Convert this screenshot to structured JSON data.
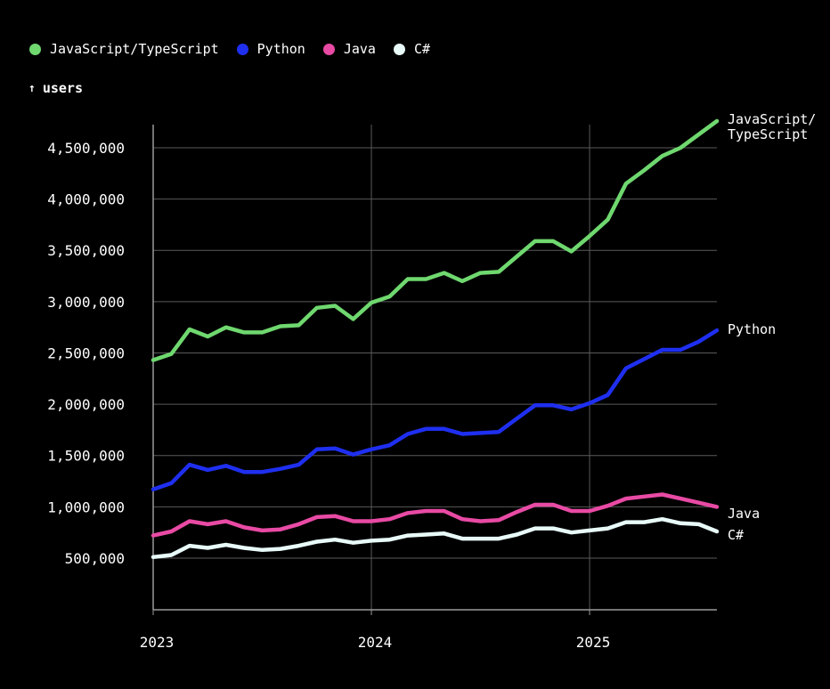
{
  "chart_data": {
    "type": "line",
    "title": "",
    "ylabel": "users",
    "xlabel": "",
    "ylim": [
      0,
      4750000
    ],
    "xlim": [
      0,
      31
    ],
    "y_ticks": [
      500000,
      1000000,
      1500000,
      2000000,
      2500000,
      3000000,
      3500000,
      4000000,
      4500000
    ],
    "y_tick_labels": [
      "500,000",
      "1,000,000",
      "1,500,000",
      "2,000,000",
      "2,500,000",
      "3,000,000",
      "3,500,000",
      "4,000,000",
      "4,500,000"
    ],
    "x_ticks": [
      0,
      12,
      24
    ],
    "x_tick_labels": [
      "2023",
      "2024",
      "2025"
    ],
    "legend_position": "top-left",
    "grid": true,
    "series": [
      {
        "name": "JavaScript/TypeScript",
        "end_label": "JavaScript/\nTypeScript",
        "color": "#6fd86f",
        "values": [
          2430000,
          2490000,
          2730000,
          2660000,
          2750000,
          2700000,
          2700000,
          2760000,
          2770000,
          2940000,
          2960000,
          2830000,
          2990000,
          3050000,
          3220000,
          3220000,
          3280000,
          3200000,
          3280000,
          3290000,
          3440000,
          3590000,
          3590000,
          3490000,
          3640000,
          3800000,
          4150000,
          4280000,
          4420000,
          4500000,
          4630000,
          4760000
        ]
      },
      {
        "name": "Python",
        "end_label": "Python",
        "color": "#1f2ff0",
        "values": [
          1170000,
          1230000,
          1410000,
          1360000,
          1400000,
          1340000,
          1340000,
          1370000,
          1410000,
          1560000,
          1570000,
          1510000,
          1560000,
          1600000,
          1710000,
          1760000,
          1760000,
          1710000,
          1720000,
          1730000,
          1860000,
          1990000,
          1990000,
          1950000,
          2010000,
          2090000,
          2350000,
          2440000,
          2530000,
          2530000,
          2610000,
          2720000
        ]
      },
      {
        "name": "Java",
        "end_label": "Java",
        "color": "#e84aa4",
        "values": [
          720000,
          760000,
          860000,
          830000,
          860000,
          800000,
          770000,
          780000,
          830000,
          900000,
          910000,
          860000,
          860000,
          880000,
          940000,
          960000,
          960000,
          880000,
          860000,
          870000,
          950000,
          1020000,
          1020000,
          960000,
          960000,
          1010000,
          1080000,
          1100000,
          1120000,
          1080000,
          1040000,
          1000000
        ]
      },
      {
        "name": "C#",
        "end_label": "C#",
        "color": "#e8fbf8",
        "values": [
          510000,
          530000,
          620000,
          600000,
          630000,
          600000,
          580000,
          590000,
          620000,
          660000,
          680000,
          650000,
          670000,
          680000,
          720000,
          730000,
          740000,
          690000,
          690000,
          690000,
          730000,
          790000,
          790000,
          750000,
          770000,
          790000,
          850000,
          850000,
          880000,
          840000,
          830000,
          760000
        ]
      }
    ]
  }
}
